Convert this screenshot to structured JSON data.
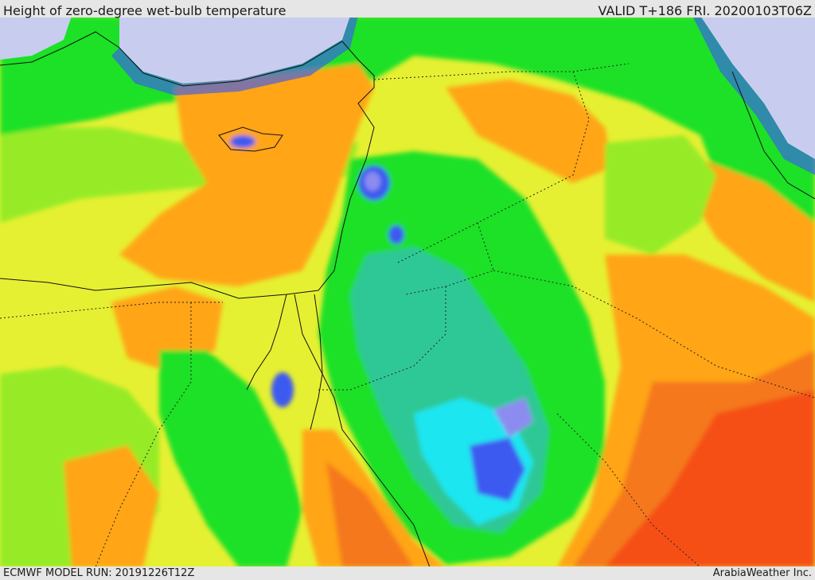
{
  "header": {
    "title": "Height of zero-degree wet-bulb temperature",
    "valid": "VALID T+186 FRI. 20200103T06Z"
  },
  "footer": {
    "run": "ECMWF MODEL RUN: 20191226T12Z",
    "credit": "ArabiaWeather Inc."
  },
  "palette": {
    "sea_light": "#c8cdf0",
    "violet": "#8c8cf0",
    "blue": "#3c5af0",
    "cyan": "#1ee6f0",
    "teal": "#2ec896",
    "green": "#1ee128",
    "lime": "#96eb28",
    "yellow": "#e6f032",
    "gold": "#ffd21e",
    "orange": "#ffa514",
    "dark_orange": "#f5781e",
    "red_orange": "#f55014",
    "magenta": "#e600b4"
  }
}
